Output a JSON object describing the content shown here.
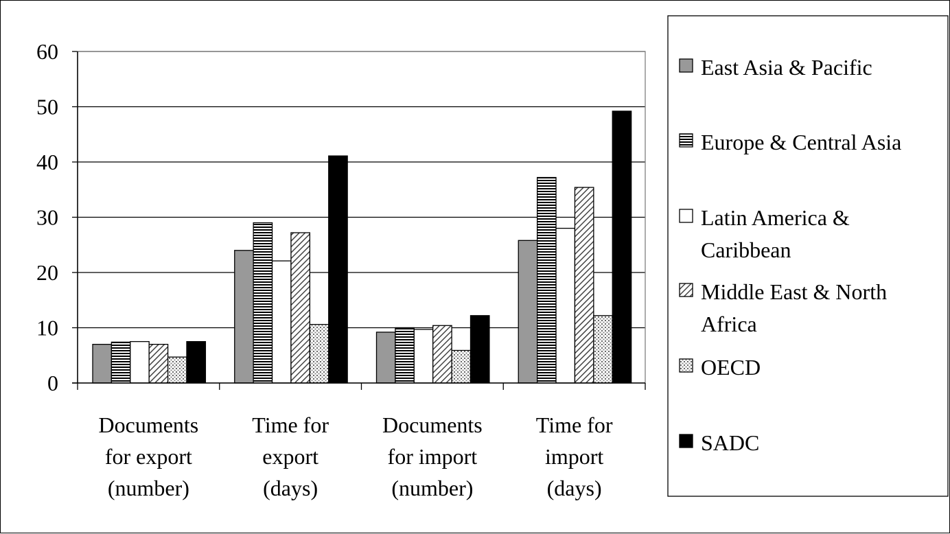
{
  "chart_data": {
    "type": "bar",
    "categories": [
      [
        "Documents",
        "for export",
        "(number)"
      ],
      [
        "Time for",
        "export",
        "(days)"
      ],
      [
        "Documents",
        "for import",
        "(number)"
      ],
      [
        "Time for",
        "import",
        "(days)"
      ]
    ],
    "series": [
      {
        "name": "East Asia & Pacific",
        "legend_lines": [
          "East Asia & Pacific"
        ],
        "pattern": "solid-gray",
        "color": "#999999",
        "values": [
          7,
          24,
          9.2,
          25.8
        ]
      },
      {
        "name": "Europe & Central Asia",
        "legend_lines": [
          "Europe & Central Asia"
        ],
        "pattern": "horizontal-lines",
        "color": "#000000",
        "values": [
          7.4,
          29,
          10,
          37.2
        ]
      },
      {
        "name": "Latin America & Caribbean",
        "legend_lines": [
          "Latin America &",
          "Caribbean"
        ],
        "pattern": "white",
        "color": "#ffffff",
        "values": [
          7.5,
          22.1,
          9.7,
          28
        ]
      },
      {
        "name": "Middle East & North Africa",
        "legend_lines": [
          "Middle East & North",
          "Africa"
        ],
        "pattern": "diagonal-lines",
        "color": "#000000",
        "values": [
          7,
          27.2,
          10.4,
          35.4
        ]
      },
      {
        "name": "OECD",
        "legend_lines": [
          "OECD"
        ],
        "pattern": "dots",
        "color": "#000000",
        "values": [
          4.7,
          10.6,
          5.9,
          12.2
        ]
      },
      {
        "name": "SADC",
        "legend_lines": [
          "SADC"
        ],
        "pattern": "solid-black",
        "color": "#000000",
        "values": [
          7.5,
          41.1,
          12.2,
          49.2
        ]
      }
    ],
    "ylim": [
      0,
      60
    ],
    "yticks": [
      0,
      10,
      20,
      30,
      40,
      50,
      60
    ],
    "grid": true,
    "legend_position": "right"
  }
}
